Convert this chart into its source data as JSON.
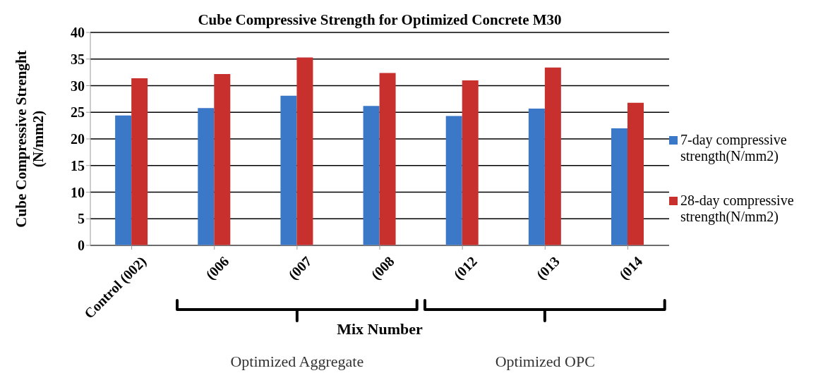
{
  "chart_data": {
    "type": "bar",
    "title": "Cube Compressive Strength for Optimized Concrete M30",
    "xlabel": "Mix Number",
    "ylabel": "Cube Compressive Strenght (N/mm2)",
    "categories": [
      "Control (002)",
      "(006",
      "(007",
      "(008",
      "(012",
      "(013",
      "(014"
    ],
    "series": [
      {
        "name": "7-day compressive strength(N/mm2)",
        "color": "#3c78c8",
        "values": [
          24.4,
          25.8,
          28.1,
          26.2,
          24.3,
          25.7,
          22.0
        ]
      },
      {
        "name": "28-day compressive strength(N/mm2)",
        "color": "#c8302e",
        "values": [
          31.4,
          32.2,
          35.3,
          32.4,
          31.0,
          33.4,
          26.8
        ]
      }
    ],
    "ylim": [
      0,
      40
    ],
    "yticks": [
      0,
      5,
      10,
      15,
      20,
      25,
      30,
      35,
      40
    ],
    "grid": "y",
    "legend": "right",
    "annotations": [
      "Optimized Aggregate",
      "Optimized OPC"
    ]
  }
}
